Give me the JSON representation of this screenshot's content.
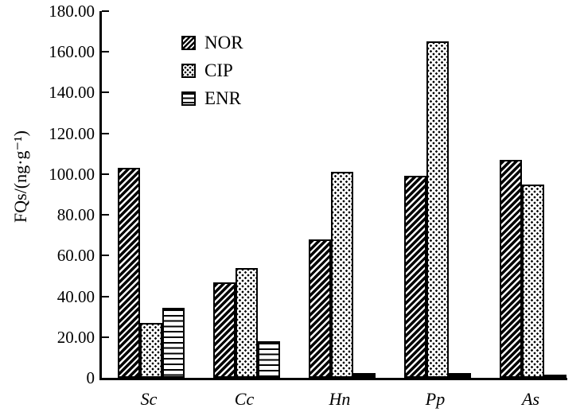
{
  "chart_data": {
    "type": "bar",
    "title": "",
    "xlabel": "",
    "ylabel": "FQs/(ng·g⁻¹)",
    "categories": [
      "Sc",
      "Cc",
      "Hn",
      "Pp",
      "As"
    ],
    "series": [
      {
        "name": "NOR",
        "pattern": "diagonal-hatch",
        "values": [
          103,
          47,
          68,
          99,
          107
        ]
      },
      {
        "name": "CIP",
        "pattern": "dot-stipple",
        "values": [
          27,
          54,
          101,
          165,
          95
        ]
      },
      {
        "name": "ENR",
        "pattern": "horizontal-lines",
        "values": [
          34.5,
          18,
          2.5,
          2.5,
          1.5
        ]
      }
    ],
    "ylim": [
      0,
      180
    ],
    "yticks": [
      {
        "value": 180,
        "label": "180.00"
      },
      {
        "value": 160,
        "label": "160.00"
      },
      {
        "value": 140,
        "label": "140.00"
      },
      {
        "value": 120,
        "label": "120.00"
      },
      {
        "value": 100,
        "label": "100.00"
      },
      {
        "value": 80,
        "label": "80.00"
      },
      {
        "value": 60,
        "label": "60.00"
      },
      {
        "value": 40,
        "label": "40.00"
      },
      {
        "value": 20,
        "label": "20.00"
      },
      {
        "value": 0,
        "label": "0"
      }
    ],
    "grid": false,
    "legend_position": "top-left-inside",
    "colors": {
      "foreground": "#000000",
      "background": "#ffffff"
    }
  }
}
